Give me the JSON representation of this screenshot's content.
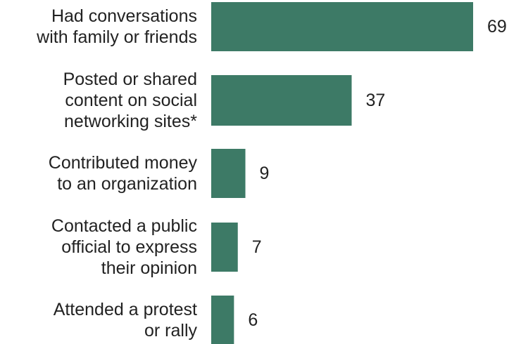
{
  "chart_data": {
    "type": "bar",
    "orientation": "horizontal",
    "categories": [
      [
        "Had conversations",
        "with family or friends"
      ],
      [
        "Posted or shared",
        "content on social",
        "networking sites*"
      ],
      [
        "Contributed money",
        "to an organization"
      ],
      [
        "Contacted a public",
        "official to express",
        "their opinion"
      ],
      [
        "Attended a protest",
        "or rally"
      ]
    ],
    "values": [
      69,
      37,
      9,
      7,
      6
    ],
    "value_labels": [
      "69",
      "37",
      "9",
      "7",
      "6"
    ],
    "xlim": [
      0,
      69
    ],
    "grid": false,
    "legend": "none",
    "bar_color": "#3d7a66",
    "text_color": "#222222"
  }
}
